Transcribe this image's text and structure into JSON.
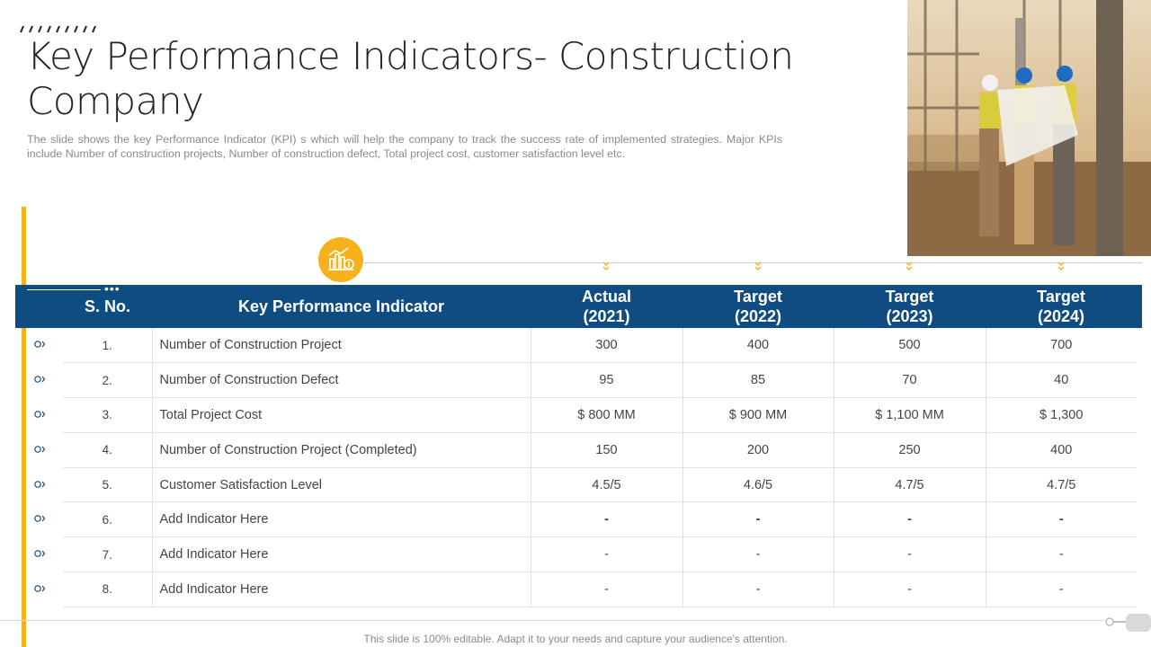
{
  "title": "Key Performance Indicators- Construction Company",
  "subtitle": "The slide shows the key Performance Indicator (KPI) s which will help the company to track the success rate of implemented strategies. Major KPIs include Number of construction projects, Number of construction defect, Total project cost, customer satisfaction level etc.",
  "colors": {
    "accent": "#F5B21A",
    "header": "#0F4C81"
  },
  "icons": {
    "badge": "chart-coin-icon",
    "bullet": "chevron-circle-icon",
    "marker": "chevron-down-icon"
  },
  "table": {
    "headers": {
      "sno": "S. No.",
      "indicator": "Key Performance Indicator",
      "c1": "Actual (2021)",
      "c2": "Target (2022)",
      "c3": "Target (2023)",
      "c4": "Target (2024)"
    },
    "rows": [
      {
        "sno": "1.",
        "indicator": "Number of Construction Project",
        "v1": "300",
        "v2": "400",
        "v3": "500",
        "v4": "700"
      },
      {
        "sno": "2.",
        "indicator": "Number of Construction Defect",
        "v1": "95",
        "v2": "85",
        "v3": "70",
        "v4": "40"
      },
      {
        "sno": "3.",
        "indicator": "Total Project Cost",
        "v1": "$ 800 MM",
        "v2": "$ 900 MM",
        "v3": "$ 1,100 MM",
        "v4": "$ 1,300"
      },
      {
        "sno": "4.",
        "indicator": "Number of Construction Project (Completed)",
        "v1": "150",
        "v2": "200",
        "v3": "250",
        "v4": "400"
      },
      {
        "sno": "5.",
        "indicator": "Customer Satisfaction Level",
        "v1": "4.5/5",
        "v2": "4.6/5",
        "v3": "4.7/5",
        "v4": "4.7/5"
      },
      {
        "sno": "6.",
        "indicator": "Add Indicator Here",
        "v1": "-",
        "v2": "-",
        "v3": "-",
        "v4": "-"
      },
      {
        "sno": "7.",
        "indicator": "Add Indicator Here",
        "v1": "-",
        "v2": "-",
        "v3": "-",
        "v4": "-"
      },
      {
        "sno": "8.",
        "indicator": "Add Indicator Here",
        "v1": "-",
        "v2": "-",
        "v3": "-",
        "v4": "-"
      }
    ]
  },
  "footer": "This slide is 100% editable. Adapt it to your needs and capture your audience's attention."
}
